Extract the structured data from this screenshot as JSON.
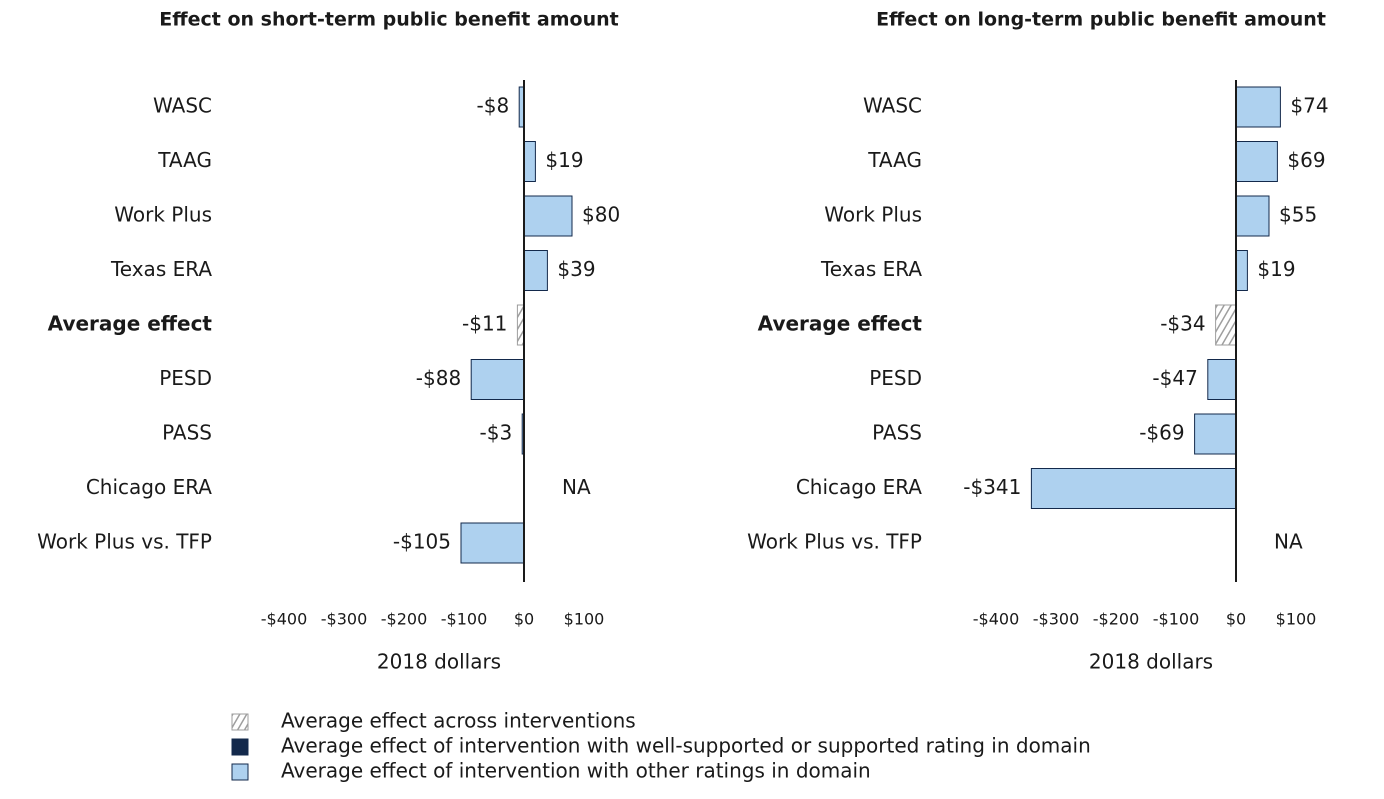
{
  "chart_data": [
    {
      "type": "bar",
      "orientation": "horizontal",
      "title": "Effect on short-term public benefit amount",
      "categories": [
        "WASC",
        "TAAG",
        "Work Plus",
        "Texas ERA",
        "Average effect",
        "PESD",
        "PASS",
        "Chicago ERA",
        "Work Plus vs. TFP"
      ],
      "values": [
        -8,
        19,
        80,
        39,
        -11,
        -88,
        -3,
        null,
        -105
      ],
      "value_labels": [
        "-$8",
        "$19",
        "$80",
        "$39",
        "-$11",
        "-$88",
        "-$3",
        "NA",
        "-$105"
      ],
      "colors": [
        "#aed1ef",
        "#aed1ef",
        "#aed1ef",
        "#aed1ef",
        "#9e9e9e",
        "#aed1ef",
        "#aed1ef",
        "#aed1ef",
        "#aed1ef"
      ],
      "xlim": [
        -400,
        100
      ],
      "xticks": [
        {
          "value": -400,
          "label": "-$400"
        },
        {
          "value": -300,
          "label": "-$300"
        },
        {
          "value": -200,
          "label": "-$200"
        },
        {
          "value": -100,
          "label": "-$100"
        },
        {
          "value": 0,
          "label": "$0"
        },
        {
          "value": 100,
          "label": "$100"
        }
      ],
      "xlabel": "2018 dollars"
    },
    {
      "type": "bar",
      "orientation": "horizontal",
      "title": "Effect on long-term public benefit amount",
      "categories": [
        "WASC",
        "TAAG",
        "Work Plus",
        "Texas ERA",
        "Average effect",
        "PESD",
        "PASS",
        "Chicago ERA",
        "Work Plus vs. TFP"
      ],
      "values": [
        74,
        69,
        55,
        19,
        -34,
        -47,
        -69,
        -341,
        null
      ],
      "value_labels": [
        "$74",
        "$69",
        "$55",
        "$19",
        "-$34",
        "-$47",
        "-$69",
        "-$341",
        "NA"
      ],
      "colors": [
        "#aed1ef",
        "#aed1ef",
        "#aed1ef",
        "#aed1ef",
        "#9e9e9e",
        "#aed1ef",
        "#aed1ef",
        "#aed1ef",
        "#aed1ef"
      ],
      "xlim": [
        -400,
        100
      ],
      "xticks": [
        {
          "value": -400,
          "label": "-$400"
        },
        {
          "value": -300,
          "label": "-$300"
        },
        {
          "value": -200,
          "label": "-$200"
        },
        {
          "value": -100,
          "label": "-$100"
        },
        {
          "value": 0,
          "label": "$0"
        },
        {
          "value": 100,
          "label": "$100"
        }
      ],
      "xlabel": "2018 dollars"
    }
  ],
  "legend": [
    {
      "name": "Average effect across interventions",
      "color": "#9e9e9e",
      "hatch": true
    },
    {
      "name": "Average effect of intervention with well-supported or supported rating in domain",
      "color": "#13294b"
    },
    {
      "name": "Average effect of intervention with other ratings in domain",
      "color": "#aed1ef"
    }
  ]
}
